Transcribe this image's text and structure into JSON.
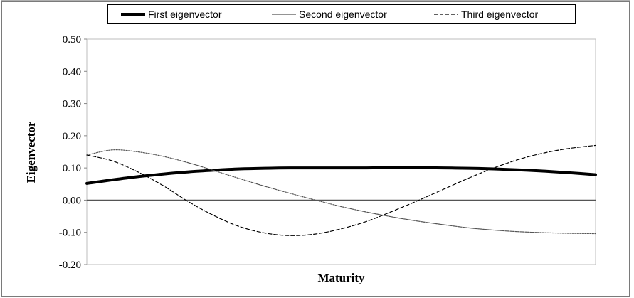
{
  "chart_data": {
    "type": "line",
    "title": "",
    "xlabel": "Maturity",
    "ylabel": "Eigenvector",
    "ylim": [
      -0.2,
      0.5
    ],
    "yticks": [
      "0.50",
      "0.40",
      "0.30",
      "0.20",
      "0.10",
      "0.00",
      "-0.10",
      "-0.20"
    ],
    "ytick_values": [
      0.5,
      0.4,
      0.3,
      0.2,
      0.1,
      0.0,
      -0.1,
      -0.2
    ],
    "x": [
      0,
      1,
      2,
      3,
      4,
      5,
      6,
      7,
      8,
      9,
      10,
      11,
      12,
      13,
      14,
      15,
      16,
      17,
      18,
      19,
      20
    ],
    "xlim": [
      0,
      20
    ],
    "grid": false,
    "legend_position": "top",
    "series": [
      {
        "name": "First eigenvector",
        "style": "thick-solid",
        "color": "#000000",
        "values": [
          0.052,
          0.063,
          0.073,
          0.081,
          0.088,
          0.093,
          0.097,
          0.099,
          0.1,
          0.1,
          0.1,
          0.1,
          0.101,
          0.101,
          0.1,
          0.099,
          0.097,
          0.094,
          0.09,
          0.085,
          0.079
        ]
      },
      {
        "name": "Second eigenvector",
        "style": "thin-solid",
        "color": "#555555",
        "values": [
          0.14,
          0.156,
          0.15,
          0.136,
          0.116,
          0.092,
          0.067,
          0.043,
          0.021,
          0.0,
          -0.02,
          -0.037,
          -0.052,
          -0.065,
          -0.076,
          -0.086,
          -0.093,
          -0.098,
          -0.101,
          -0.103,
          -0.104
        ]
      },
      {
        "name": "Third eigenvector",
        "style": "dashed",
        "color": "#000000",
        "values": [
          0.14,
          0.122,
          0.088,
          0.045,
          -0.005,
          -0.048,
          -0.082,
          -0.102,
          -0.11,
          -0.105,
          -0.089,
          -0.066,
          -0.035,
          -0.002,
          0.033,
          0.068,
          0.1,
          0.127,
          0.147,
          0.161,
          0.17
        ]
      }
    ]
  }
}
